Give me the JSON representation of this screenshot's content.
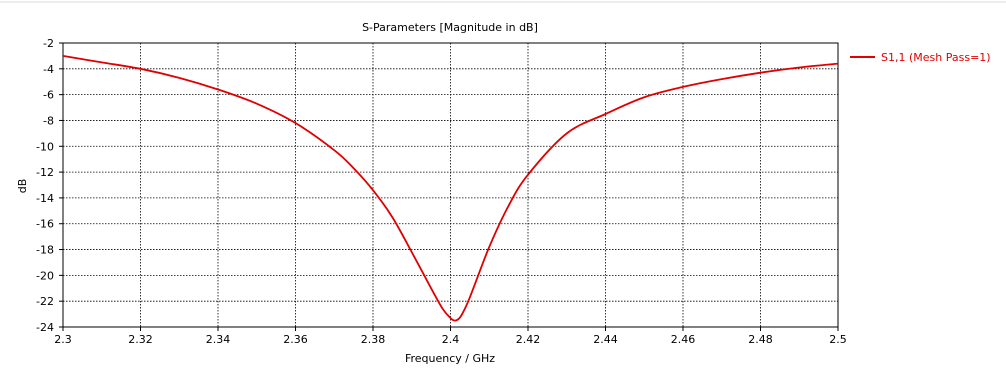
{
  "chart_data": {
    "type": "line",
    "title": "S-Parameters [Magnitude in dB]",
    "xlabel": "Frequency / GHz",
    "ylabel": "dB",
    "xlim": [
      2.3,
      2.5
    ],
    "ylim": [
      -24,
      -2
    ],
    "x_ticks": [
      "2.3",
      "2.32",
      "2.34",
      "2.36",
      "2.38",
      "2.4",
      "2.42",
      "2.44",
      "2.46",
      "2.48",
      "2.5"
    ],
    "y_ticks": [
      "-2",
      "-4",
      "-6",
      "-8",
      "-10",
      "-12",
      "-14",
      "-16",
      "-18",
      "-20",
      "-22",
      "-24"
    ],
    "grid": true,
    "legend_position": "right",
    "series": [
      {
        "name": "S1,1 (Mesh Pass=1)",
        "color": "#e00000",
        "x": [
          2.3,
          2.31,
          2.32,
          2.33,
          2.34,
          2.35,
          2.36,
          2.37,
          2.375,
          2.38,
          2.385,
          2.39,
          2.395,
          2.398,
          2.4,
          2.401,
          2.402,
          2.403,
          2.405,
          2.41,
          2.415,
          2.42,
          2.43,
          2.44,
          2.45,
          2.46,
          2.47,
          2.48,
          2.49,
          2.5
        ],
        "y": [
          -3.0,
          -3.5,
          -4.0,
          -4.7,
          -5.6,
          -6.7,
          -8.2,
          -10.3,
          -11.7,
          -13.4,
          -15.5,
          -18.2,
          -21.0,
          -22.6,
          -23.3,
          -23.5,
          -23.4,
          -23.0,
          -21.7,
          -17.8,
          -14.6,
          -12.2,
          -9.0,
          -7.5,
          -6.2,
          -5.4,
          -4.8,
          -4.3,
          -3.9,
          -3.6
        ]
      }
    ]
  }
}
